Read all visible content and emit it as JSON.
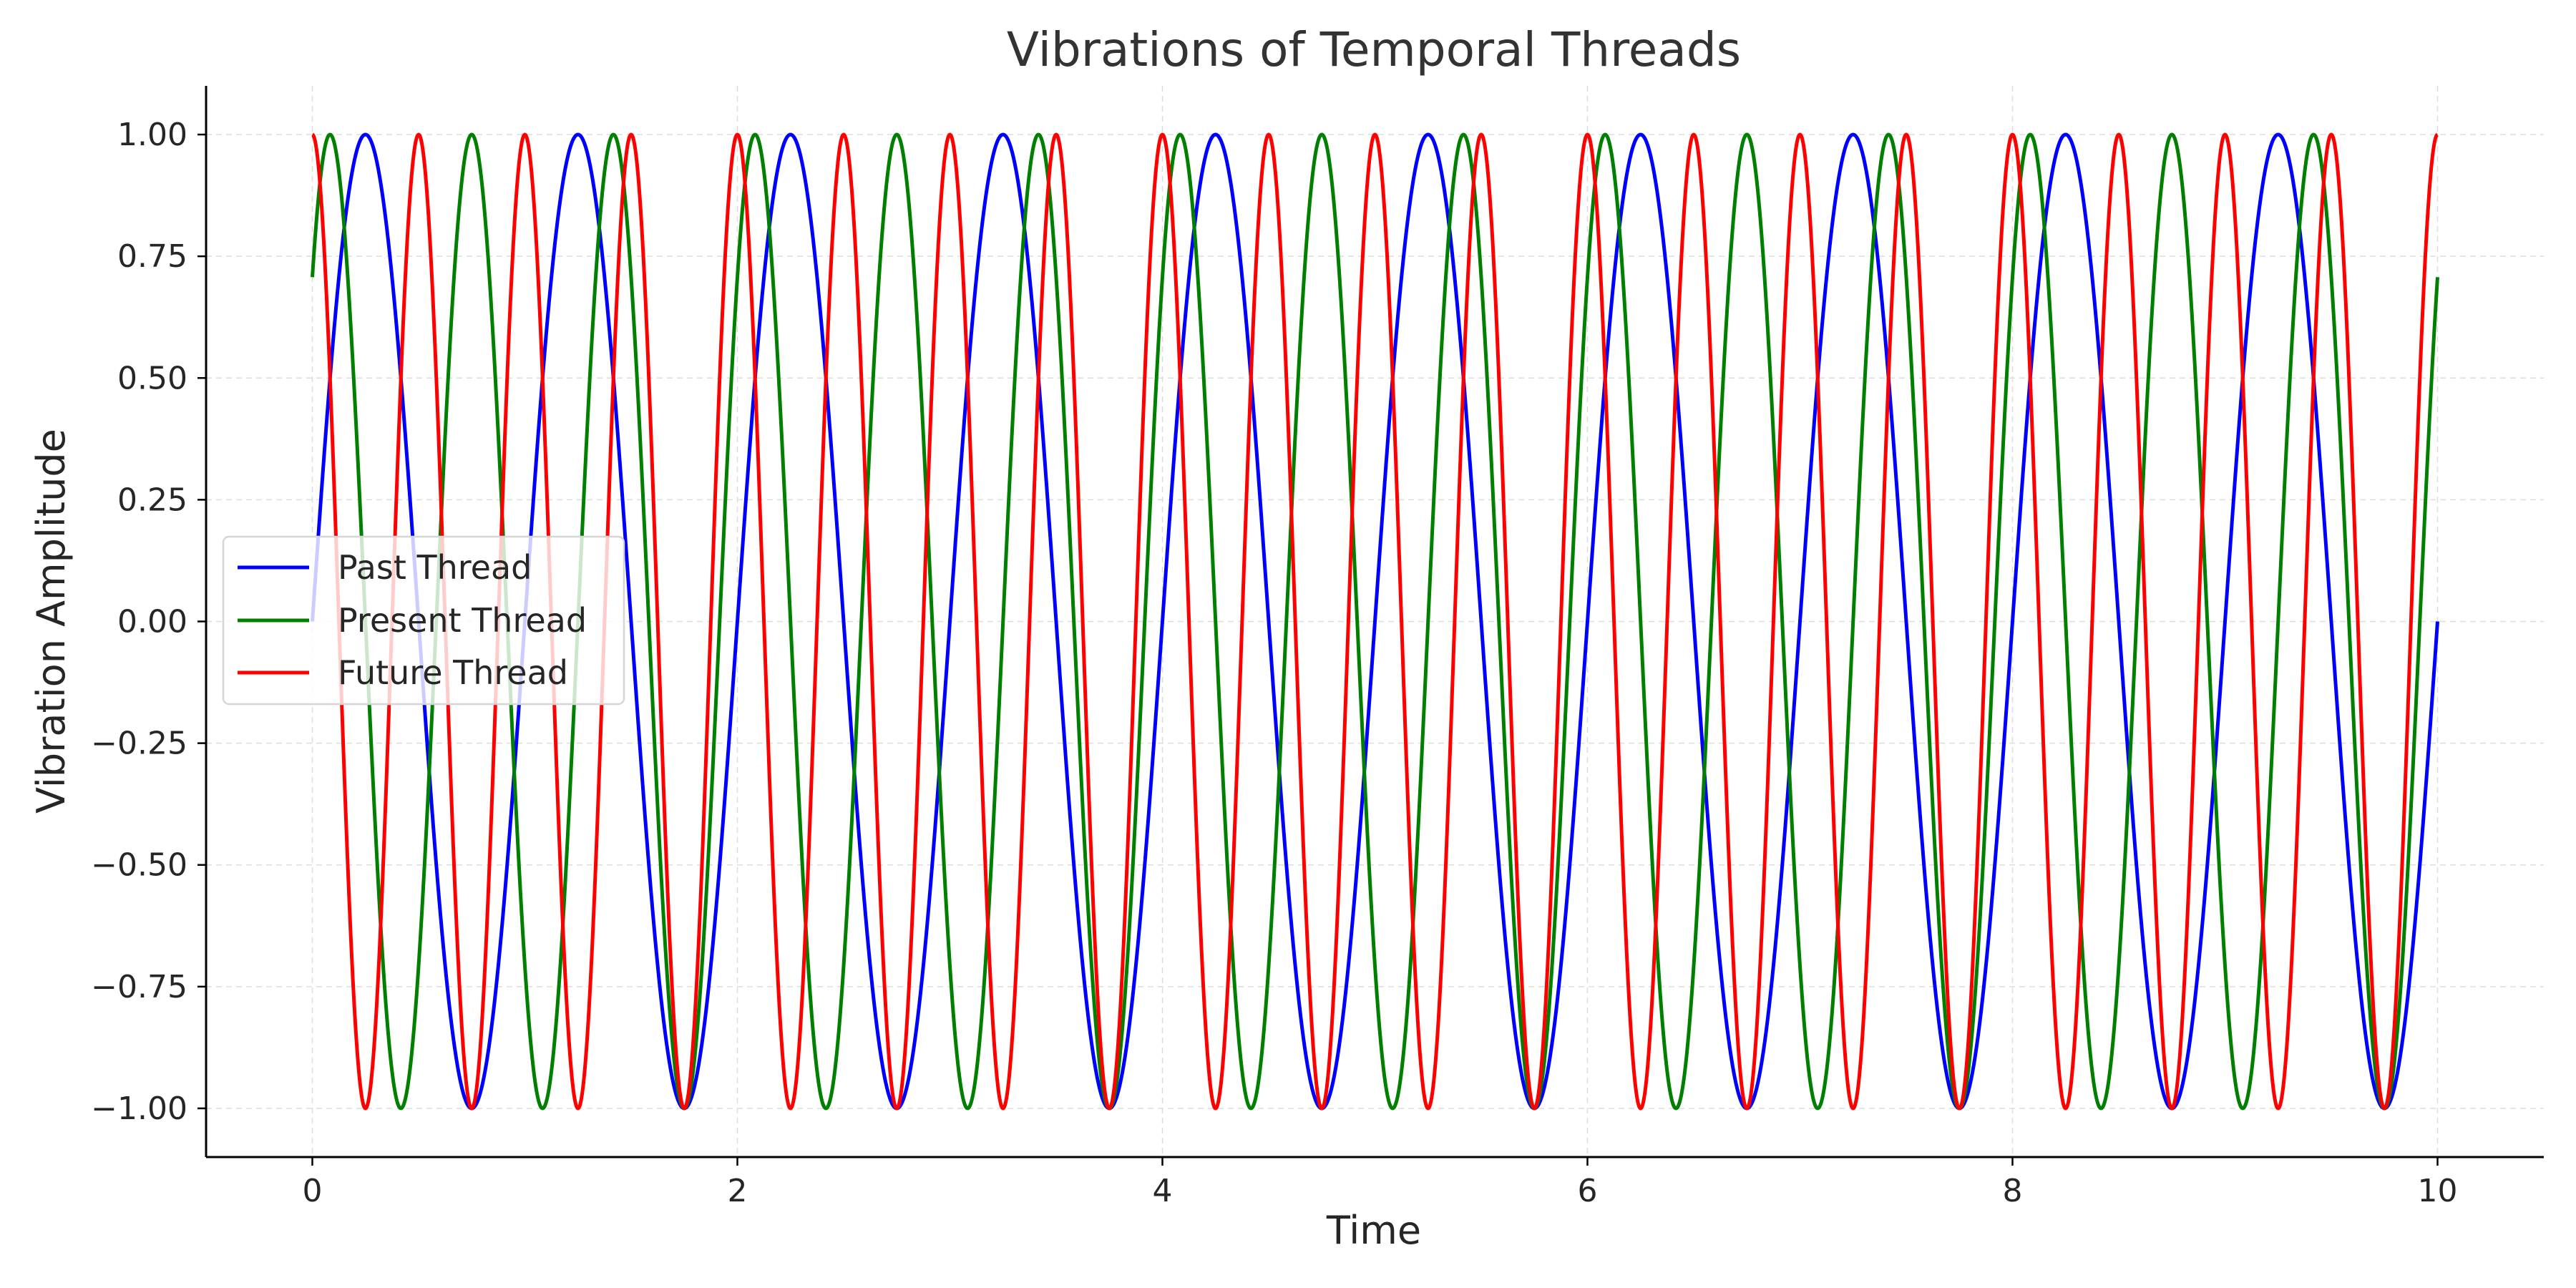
{
  "chart_data": {
    "type": "line",
    "title": "Vibrations of Temporal Threads",
    "xlabel": "Time",
    "ylabel": "Vibration Amplitude",
    "xlim": [
      -0.5,
      10.5
    ],
    "ylim": [
      -1.1,
      1.1
    ],
    "xticks": [
      0,
      2,
      4,
      6,
      8,
      10
    ],
    "xtick_labels": [
      "0",
      "2",
      "4",
      "6",
      "8",
      "10"
    ],
    "yticks": [
      -1.0,
      -0.75,
      -0.5,
      -0.25,
      0.0,
      0.25,
      0.5,
      0.75,
      1.0
    ],
    "ytick_labels": [
      "−1.00",
      "−0.75",
      "−0.50",
      "−0.25",
      "0.00",
      "0.25",
      "0.50",
      "0.75",
      "1.00"
    ],
    "grid": true,
    "legend_position": "center-left",
    "series": [
      {
        "name": "Past Thread",
        "color": "#0000ff",
        "function": "sin(2*pi*1.0*t)",
        "frequency": 1.0,
        "phase": 0.0
      },
      {
        "name": "Present Thread",
        "color": "#008000",
        "function": "sin(2*pi*1.5*t + pi/4)",
        "frequency": 1.5,
        "phase": 0.785398
      },
      {
        "name": "Future Thread",
        "color": "#ff0000",
        "function": "sin(2*pi*2.0*t + pi/2)",
        "frequency": 2.0,
        "phase": 1.570796
      }
    ]
  }
}
